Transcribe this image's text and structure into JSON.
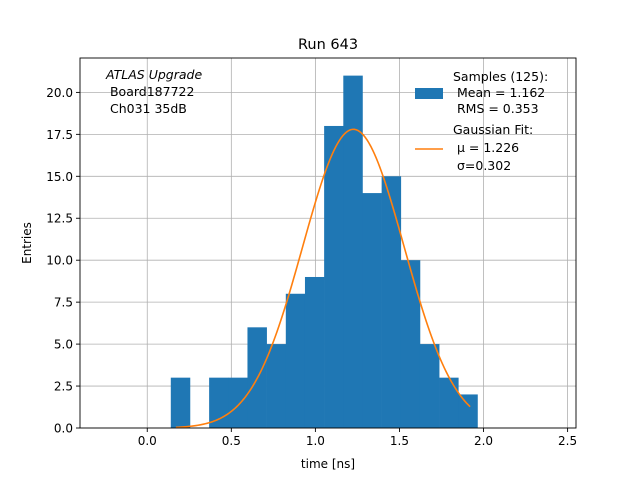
{
  "chart_data": {
    "type": "bar",
    "title": "Run 643",
    "xlabel": "time [ns]",
    "ylabel": "Entries",
    "xlim": [
      -0.4,
      2.55
    ],
    "ylim": [
      0,
      22.05
    ],
    "xticks": [
      0.0,
      0.5,
      1.0,
      1.5,
      2.0,
      2.5
    ],
    "xtick_labels": [
      "0.0",
      "0.5",
      "1.0",
      "1.5",
      "2.0",
      "2.5"
    ],
    "yticks": [
      0.0,
      2.5,
      5.0,
      7.5,
      10.0,
      12.5,
      15.0,
      17.5,
      20.0
    ],
    "ytick_labels": [
      "0.0",
      "2.5",
      "5.0",
      "7.5",
      "10.0",
      "12.5",
      "15.0",
      "17.5",
      "20.0"
    ],
    "grid": true,
    "bin_width": 0.114,
    "bins": [
      {
        "x0": 0.14,
        "value": 3
      },
      {
        "x0": 0.254,
        "value": 0
      },
      {
        "x0": 0.368,
        "value": 3
      },
      {
        "x0": 0.482,
        "value": 3
      },
      {
        "x0": 0.596,
        "value": 6
      },
      {
        "x0": 0.71,
        "value": 5
      },
      {
        "x0": 0.824,
        "value": 8
      },
      {
        "x0": 0.938,
        "value": 9
      },
      {
        "x0": 1.052,
        "value": 18
      },
      {
        "x0": 1.166,
        "value": 21
      },
      {
        "x0": 1.28,
        "value": 14
      },
      {
        "x0": 1.394,
        "value": 15
      },
      {
        "x0": 1.508,
        "value": 10
      },
      {
        "x0": 1.622,
        "value": 5
      },
      {
        "x0": 1.736,
        "value": 3
      },
      {
        "x0": 1.85,
        "value": 2
      }
    ],
    "fit": {
      "mu": 1.226,
      "sigma": 0.302,
      "amplitude": 17.8,
      "x_range": [
        0.17,
        1.92
      ]
    },
    "bar_color": "#1f77b4",
    "fit_color": "#ff7f0e",
    "annotation_lines": [
      "ATLAS Upgrade",
      " Board187722",
      " Ch031 35dB"
    ],
    "legend_position": "top-right",
    "legend": {
      "samples_lines": [
        "Samples (125):",
        " Mean = 1.162",
        " RMS = 0.353"
      ],
      "fit_lines": [
        "Gaussian Fit:",
        " μ = 1.226",
        " σ=0.302"
      ]
    }
  }
}
